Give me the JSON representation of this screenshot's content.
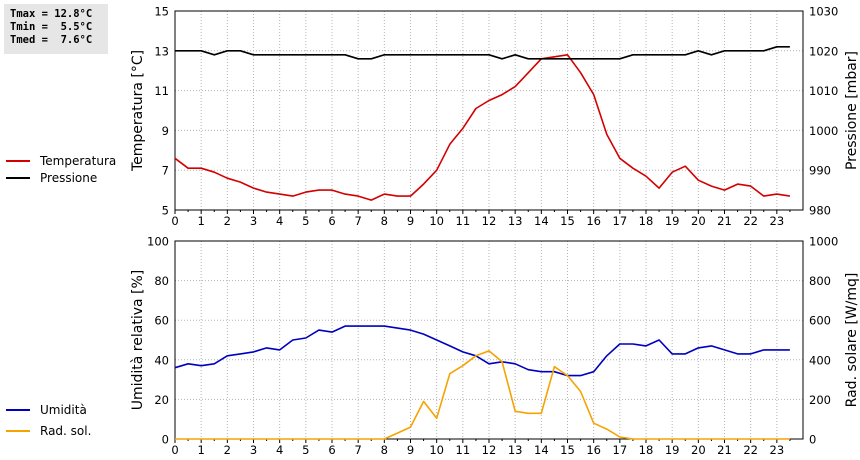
{
  "stats": {
    "tmax": "Tmax = 12.8°C",
    "tmin": "Tmin =  5.5°C",
    "tmed": "Tmed =  7.6°C"
  },
  "legend_top": [
    {
      "label": "Temperatura",
      "color": "#d40000"
    },
    {
      "label": "Pressione",
      "color": "#000000"
    }
  ],
  "legend_bottom": [
    {
      "label": "Umidità",
      "color": "#0000c0"
    },
    {
      "label": "Rad. sol.",
      "color": "#f5a300"
    }
  ],
  "chart_data": [
    {
      "type": "line",
      "grid": true,
      "x": [
        0,
        0.5,
        1,
        1.5,
        2,
        2.5,
        3,
        3.5,
        4,
        4.5,
        5,
        5.5,
        6,
        6.5,
        7,
        7.5,
        8,
        8.5,
        9,
        9.5,
        10,
        10.5,
        11,
        11.5,
        12,
        12.5,
        13,
        13.5,
        14,
        14.5,
        15,
        15.5,
        16,
        16.5,
        17,
        17.5,
        18,
        18.5,
        19,
        19.5,
        20,
        20.5,
        21,
        21.5,
        22,
        22.5,
        23,
        23.5
      ],
      "xlim": [
        0,
        24
      ],
      "xticks": [
        "0",
        "1",
        "2",
        "3",
        "4",
        "5",
        "6",
        "7",
        "8",
        "9",
        "10",
        "11",
        "12",
        "13",
        "14",
        "15",
        "16",
        "17",
        "18",
        "19",
        "20",
        "21",
        "22",
        "23"
      ],
      "ylabel": "Temperatura [°C]",
      "ylim": [
        5,
        15
      ],
      "yticks": [
        "5",
        "7",
        "9",
        "11",
        "13",
        "15"
      ],
      "y2label": "Pressione [mbar]",
      "y2lim": [
        980,
        1030
      ],
      "y2ticks": [
        "980",
        "990",
        "1000",
        "1010",
        "1020",
        "1030"
      ],
      "series": [
        {
          "name": "Temperatura",
          "axis": "left",
          "color": "#d40000",
          "values": [
            7.6,
            7.1,
            7.1,
            6.9,
            6.6,
            6.4,
            6.1,
            5.9,
            5.8,
            5.7,
            5.9,
            6.0,
            6.0,
            5.8,
            5.7,
            5.5,
            5.8,
            5.7,
            5.7,
            6.3,
            7.0,
            8.3,
            9.1,
            10.1,
            10.5,
            10.8,
            11.2,
            11.9,
            12.6,
            12.7,
            12.8,
            11.9,
            10.8,
            8.8,
            7.6,
            7.1,
            6.7,
            6.1,
            6.9,
            7.2,
            6.5,
            6.2,
            6.0,
            6.3,
            6.2,
            5.7,
            5.8,
            5.7
          ]
        },
        {
          "name": "Pressione",
          "axis": "right",
          "color": "#000000",
          "values": [
            1020,
            1020,
            1020,
            1019,
            1020,
            1020,
            1019,
            1019,
            1019,
            1019,
            1019,
            1019,
            1019,
            1019,
            1018,
            1018,
            1019,
            1019,
            1019,
            1019,
            1019,
            1019,
            1019,
            1019,
            1019,
            1018,
            1019,
            1018,
            1018,
            1018,
            1018,
            1018,
            1018,
            1018,
            1018,
            1019,
            1019,
            1019,
            1019,
            1019,
            1020,
            1019,
            1020,
            1020,
            1020,
            1020,
            1021,
            1021
          ]
        }
      ]
    },
    {
      "type": "line",
      "grid": true,
      "x": [
        0,
        0.5,
        1,
        1.5,
        2,
        2.5,
        3,
        3.5,
        4,
        4.5,
        5,
        5.5,
        6,
        6.5,
        7,
        7.5,
        8,
        8.5,
        9,
        9.5,
        10,
        10.5,
        11,
        11.5,
        12,
        12.5,
        13,
        13.5,
        14,
        14.5,
        15,
        15.5,
        16,
        16.5,
        17,
        17.5,
        18,
        18.5,
        19,
        19.5,
        20,
        20.5,
        21,
        21.5,
        22,
        22.5,
        23,
        23.5
      ],
      "xlim": [
        0,
        24
      ],
      "xticks": [
        "0",
        "1",
        "2",
        "3",
        "4",
        "5",
        "6",
        "7",
        "8",
        "9",
        "10",
        "11",
        "12",
        "13",
        "14",
        "15",
        "16",
        "17",
        "18",
        "19",
        "20",
        "21",
        "22",
        "23"
      ],
      "ylabel": "Umidità relativa [%]",
      "ylim": [
        0,
        100
      ],
      "yticks": [
        "0",
        "20",
        "40",
        "60",
        "80",
        "100"
      ],
      "y2label": "Rad. solare [W/mq]",
      "y2lim": [
        0,
        1000
      ],
      "y2ticks": [
        "0",
        "200",
        "400",
        "600",
        "800",
        "1000"
      ],
      "series": [
        {
          "name": "Umidità",
          "axis": "left",
          "color": "#0000c0",
          "values": [
            36,
            38,
            37,
            38,
            42,
            43,
            44,
            46,
            45,
            50,
            51,
            55,
            54,
            57,
            57,
            57,
            57,
            56,
            55,
            53,
            50,
            47,
            44,
            42,
            38,
            39,
            38,
            35,
            34,
            34,
            32,
            32,
            34,
            42,
            48,
            48,
            47,
            50,
            43,
            43,
            46,
            47,
            45,
            43,
            43,
            45,
            45,
            45
          ]
        },
        {
          "name": "Rad. sol.",
          "axis": "right",
          "color": "#f5a300",
          "values": [
            0,
            0,
            0,
            0,
            0,
            0,
            0,
            0,
            0,
            0,
            0,
            0,
            0,
            0,
            0,
            0,
            0,
            30,
            60,
            190,
            105,
            330,
            370,
            420,
            445,
            390,
            140,
            130,
            130,
            365,
            320,
            240,
            80,
            50,
            10,
            0,
            0,
            0,
            0,
            0,
            0,
            0,
            0,
            0,
            0,
            0,
            0,
            0
          ]
        }
      ]
    }
  ]
}
